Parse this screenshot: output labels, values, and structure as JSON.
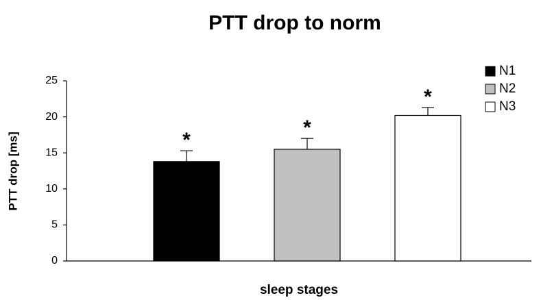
{
  "chart_data": {
    "type": "bar",
    "title": "PTT drop to norm",
    "y_label": "PTT drop [ms]",
    "x_label": "sleep stages",
    "categories": [
      null
    ],
    "series": [
      {
        "name": "N1",
        "color": "#000000",
        "values": [
          13.8
        ],
        "errors": [
          1.5
        ]
      },
      {
        "name": "N2",
        "color": "#c0c0c0",
        "values": [
          15.5
        ],
        "errors": [
          1.5
        ]
      },
      {
        "name": "N3",
        "color": "#ffffff",
        "values": [
          20.2
        ],
        "errors": [
          1.1
        ]
      }
    ],
    "annotations": [
      "*",
      "*",
      "*"
    ],
    "ylim": [
      0,
      25
    ],
    "yticks": [
      0,
      5,
      10,
      15,
      20,
      25
    ],
    "grid": false,
    "legend": "top-right"
  }
}
